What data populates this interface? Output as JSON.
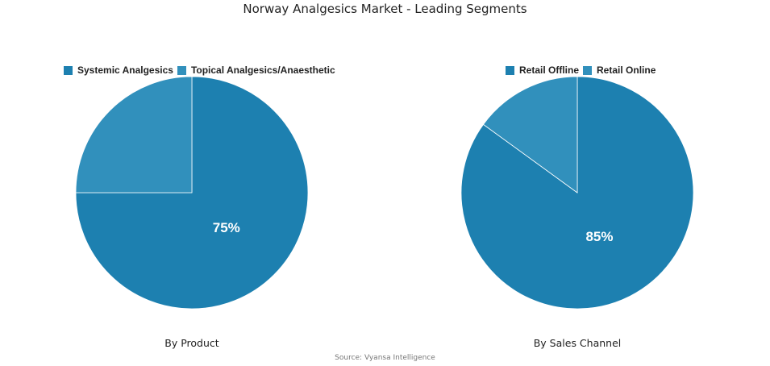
{
  "title": "Norway Analgesics Market - Leading Segments",
  "source": "Source: Vyansa Intelligence",
  "colors": {
    "primary": "#1d80b0",
    "secondary": "#3190bc",
    "slice_border": "#ffffff"
  },
  "chart_data": [
    {
      "type": "pie",
      "title": "By Product",
      "categories": [
        "Systemic Analgesics",
        "Topical Analgesics/Anaesthetic"
      ],
      "values": [
        75,
        25
      ],
      "colors": [
        "#1d80b0",
        "#3190bc"
      ],
      "labels": [
        "75%",
        ""
      ],
      "legend": "top"
    },
    {
      "type": "pie",
      "title": "By Sales Channel",
      "categories": [
        "Retail Offline",
        "Retail Online"
      ],
      "values": [
        85,
        15
      ],
      "colors": [
        "#1d80b0",
        "#3190bc"
      ],
      "labels": [
        "85%",
        ""
      ],
      "legend": "top"
    }
  ]
}
